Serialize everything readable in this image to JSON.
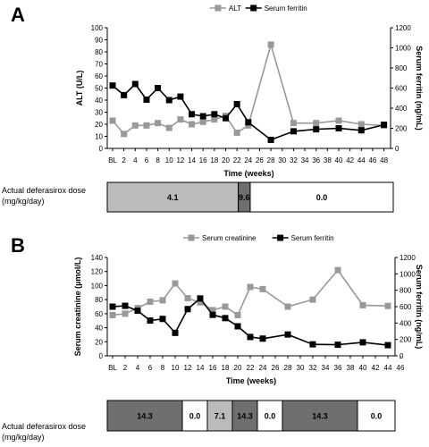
{
  "panels": [
    {
      "letter": "A",
      "chart_data": {
        "type": "line",
        "x": [
          "BL",
          "2",
          "4",
          "6",
          "8",
          "10",
          "12",
          "14",
          "16",
          "18",
          "20",
          "22",
          "24",
          "26",
          "28",
          "30",
          "32",
          "34",
          "36",
          "38",
          "40",
          "42",
          "44",
          "46",
          "48"
        ],
        "xlabel": "Time (weeks)",
        "series": [
          {
            "name": "ALT",
            "axis": "left",
            "color": "#999999",
            "points": [
              [
                "BL",
                23
              ],
              [
                "2",
                12
              ],
              [
                "4",
                19
              ],
              [
                "6",
                19
              ],
              [
                "8",
                21
              ],
              [
                "10",
                17
              ],
              [
                "12",
                24
              ],
              [
                "14",
                20
              ],
              [
                "16",
                22
              ],
              [
                "18",
                24
              ],
              [
                "20",
                27
              ],
              [
                "22",
                13
              ],
              [
                "24",
                19
              ],
              [
                "28",
                86
              ],
              [
                "32",
                21
              ],
              [
                "36",
                21
              ],
              [
                "40",
                23
              ],
              [
                "44",
                20
              ],
              [
                "48",
                19
              ]
            ]
          },
          {
            "name": "Serum ferritin",
            "axis": "right",
            "color": "#000000",
            "points": [
              [
                "BL",
                625
              ],
              [
                "2",
                530
              ],
              [
                "4",
                640
              ],
              [
                "6",
                485
              ],
              [
                "8",
                600
              ],
              [
                "10",
                480
              ],
              [
                "12",
                515
              ],
              [
                "14",
                340
              ],
              [
                "16",
                320
              ],
              [
                "18",
                340
              ],
              [
                "20",
                300
              ],
              [
                "22",
                440
              ],
              [
                "24",
                260
              ],
              [
                "28",
                85
              ],
              [
                "32",
                170
              ],
              [
                "36",
                190
              ],
              [
                "40",
                200
              ],
              [
                "44",
                180
              ],
              [
                "48",
                235
              ]
            ]
          }
        ],
        "ylabel_left": "ALT (U/L)",
        "ylim_left": [
          0,
          100
        ],
        "yticks_left": [
          0,
          10,
          20,
          30,
          40,
          50,
          60,
          70,
          80,
          90,
          100
        ],
        "ylabel_right": "Serum ferritin (ng/mL)",
        "ylim_right": [
          0,
          1200
        ],
        "yticks_right": [
          0,
          200,
          400,
          600,
          800,
          1000,
          1200
        ],
        "legend": "top"
      },
      "dose": {
        "label": "Actual deferasirox dose (mg/kg/day)",
        "label_lines": [
          "Actual deferasirox dose",
          "(mg/kg/day)"
        ],
        "segments": [
          {
            "from": "BL",
            "to": "22",
            "value": "4.1",
            "color": "#bbbbbb"
          },
          {
            "from": "22",
            "to": "24",
            "value": "9.6",
            "color": "#6f6f6f"
          },
          {
            "from": "24",
            "to": "48",
            "value": "0.0",
            "color": "#ffffff"
          }
        ]
      }
    },
    {
      "letter": "B",
      "chart_data": {
        "type": "line",
        "x": [
          "BL",
          "2",
          "4",
          "6",
          "8",
          "10",
          "12",
          "14",
          "16",
          "18",
          "20",
          "22",
          "24",
          "26",
          "28",
          "30",
          "32",
          "34",
          "36",
          "38",
          "40",
          "42",
          "44",
          "46"
        ],
        "xlabel": "Time (weeks)",
        "series": [
          {
            "name": "Serum creatinine",
            "axis": "left",
            "color": "#999999",
            "points": [
              [
                "BL",
                58
              ],
              [
                "2",
                60
              ],
              [
                "4",
                68
              ],
              [
                "6",
                77
              ],
              [
                "8",
                79
              ],
              [
                "10",
                103
              ],
              [
                "12",
                82
              ],
              [
                "14",
                76
              ],
              [
                "16",
                65
              ],
              [
                "18",
                70
              ],
              [
                "20",
                58
              ],
              [
                "22",
                98
              ],
              [
                "24",
                95
              ],
              [
                "28",
                70
              ],
              [
                "32",
                80
              ],
              [
                "36",
                122
              ],
              [
                "40",
                72
              ],
              [
                "44",
                71
              ]
            ]
          },
          {
            "name": "Serum ferritin",
            "axis": "right",
            "color": "#000000",
            "points": [
              [
                "BL",
                600
              ],
              [
                "2",
                610
              ],
              [
                "4",
                550
              ],
              [
                "6",
                430
              ],
              [
                "8",
                450
              ],
              [
                "10",
                280
              ],
              [
                "12",
                570
              ],
              [
                "14",
                700
              ],
              [
                "16",
                500
              ],
              [
                "18",
                460
              ],
              [
                "20",
                360
              ],
              [
                "22",
                230
              ],
              [
                "24",
                210
              ],
              [
                "28",
                260
              ],
              [
                "32",
                140
              ],
              [
                "36",
                135
              ],
              [
                "40",
                165
              ],
              [
                "44",
                130
              ]
            ]
          }
        ],
        "ylabel_left": "Serum creatinine (µmol/L)",
        "ylim_left": [
          0,
          140
        ],
        "yticks_left": [
          0,
          20,
          40,
          60,
          80,
          100,
          120,
          140
        ],
        "ylabel_right": "Serum ferritin (ng/mL)",
        "ylim_right": [
          0,
          1200
        ],
        "yticks_right": [
          0,
          200,
          400,
          600,
          800,
          1000,
          1200
        ],
        "legend": "top"
      },
      "dose": {
        "label": "Actual deferasirox dose (mg/kg/day)",
        "label_lines": [
          "Actual deferasirox dose",
          "(mg/kg/day)"
        ],
        "segments": [
          {
            "from": "BL",
            "to": "12",
            "value": "14.3",
            "color": "#6f6f6f"
          },
          {
            "from": "12",
            "to": "16",
            "value": "0.0",
            "color": "#ffffff"
          },
          {
            "from": "16",
            "to": "20",
            "value": "7.1",
            "color": "#bbbbbb"
          },
          {
            "from": "20",
            "to": "24",
            "value": "14.3",
            "color": "#6f6f6f"
          },
          {
            "from": "24",
            "to": "28",
            "value": "0.0",
            "color": "#ffffff"
          },
          {
            "from": "28",
            "to": "40",
            "value": "14.3",
            "color": "#6f6f6f"
          },
          {
            "from": "40",
            "to": "46",
            "value": "0.0",
            "color": "#ffffff"
          }
        ]
      }
    }
  ]
}
